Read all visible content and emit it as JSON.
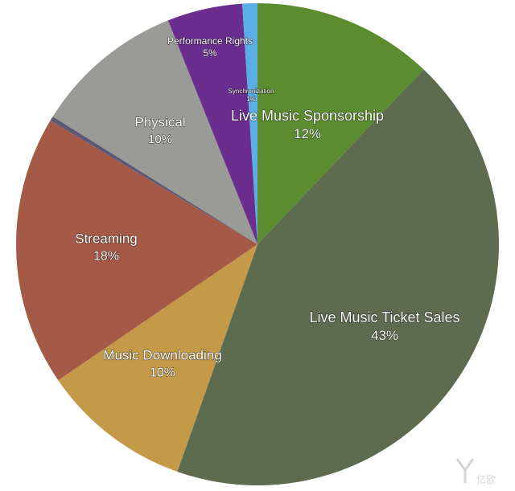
{
  "chart_data": {
    "type": "pie",
    "title": "",
    "start_angle_deg": 0,
    "direction": "clockwise",
    "slices": [
      {
        "label": "Live Music Sponsorship",
        "value": 12,
        "percent_label": "12%",
        "color": "#5b8c2f"
      },
      {
        "label": "Live Music Ticket Sales",
        "value": 43,
        "percent_label": "43%",
        "color": "#5d6b4f"
      },
      {
        "label": "Music Downloading",
        "value": 10,
        "percent_label": "10%",
        "color": "#c49a49"
      },
      {
        "label": "Streaming",
        "value": 18,
        "percent_label": "18%",
        "color": "#a45a47"
      },
      {
        "label": "",
        "value": 0.3,
        "percent_label": "",
        "color": "#5a5876"
      },
      {
        "label": "Physical",
        "value": 10,
        "percent_label": "10%",
        "color": "#9a9a96"
      },
      {
        "label": "Performance Rights",
        "value": 5,
        "percent_label": "5%",
        "color": "#6b2e8e"
      },
      {
        "label": "Synchronization",
        "value": 1,
        "percent_label": "1%",
        "color": "#5aaee6"
      }
    ]
  },
  "watermark": {
    "logo_text": "亿欧"
  }
}
